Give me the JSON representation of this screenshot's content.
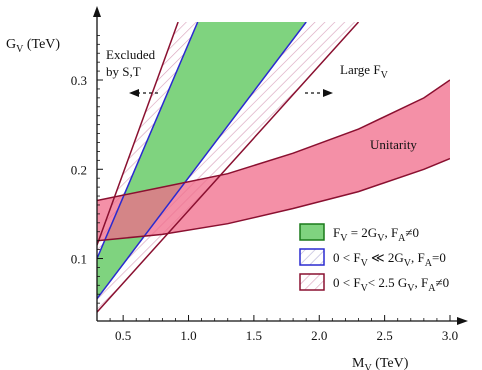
{
  "chart_data": {
    "type": "area",
    "ylabel_main": "G",
    "ylabel_sub": "V",
    "ylabel_unit": " (TeV)",
    "xlabel_main": "M",
    "xlabel_sub": "V",
    "xlabel_unit": " (TeV)",
    "xlim": [
      0.3,
      3.0
    ],
    "ylim": [
      0.03,
      0.365
    ],
    "x_ticks": [
      0.5,
      1.0,
      1.5,
      2.0,
      2.5,
      3.0
    ],
    "x_tick_labels": [
      "0.5",
      "1.0",
      "1.5",
      "2.0",
      "2.5",
      "3.0"
    ],
    "y_ticks": [
      0.1,
      0.2,
      0.3
    ],
    "y_tick_labels": [
      "0.1",
      "0.2",
      "0.3"
    ],
    "grid": false,
    "series": [
      {
        "name": "F_V = 2G_V, F_A≠0",
        "kind": "band",
        "color": "#7fd37f",
        "edge_color": "#2a2ad0",
        "lower": [
          [
            0.3,
            0.055
          ],
          [
            1.9,
            0.365
          ]
        ],
        "upper": [
          [
            0.3,
            0.1
          ],
          [
            1.07,
            0.365
          ]
        ]
      },
      {
        "name": "0 < F_V ≪ 2G_V, F_A=0",
        "kind": "hatched-band",
        "color": "#b9b4d8",
        "edge_color": "#2a2ad0",
        "lower": [
          [
            0.3,
            0.055
          ],
          [
            1.9,
            0.365
          ]
        ],
        "upper": [
          [
            0.3,
            0.1
          ],
          [
            1.07,
            0.365
          ]
        ]
      },
      {
        "name": "0 < F_V < 2.5 G_V, F_A≠0",
        "kind": "hatched-band",
        "color": "#d9a3bd",
        "edge_color": "#8a1030",
        "lower": [
          [
            0.3,
            0.04
          ],
          [
            2.3,
            0.365
          ]
        ],
        "upper": [
          [
            0.3,
            0.115
          ],
          [
            0.92,
            0.365
          ]
        ]
      },
      {
        "name": "Unitarity",
        "kind": "band",
        "color": "#f06b8a",
        "edge_color": "#8a1030",
        "lower": [
          [
            0.3,
            0.12
          ],
          [
            0.8,
            0.127
          ],
          [
            1.3,
            0.139
          ],
          [
            1.8,
            0.156
          ],
          [
            2.3,
            0.175
          ],
          [
            2.8,
            0.2
          ],
          [
            3.0,
            0.212
          ]
        ],
        "upper": [
          [
            0.3,
            0.165
          ],
          [
            0.8,
            0.18
          ],
          [
            1.3,
            0.195
          ],
          [
            1.8,
            0.218
          ],
          [
            2.3,
            0.245
          ],
          [
            2.8,
            0.28
          ],
          [
            3.0,
            0.3
          ]
        ]
      }
    ],
    "annotations": {
      "excluded_line1": "Excluded",
      "excluded_line2": "by S,T",
      "large_main": "Large F",
      "large_sub": "V",
      "unitarity": "Unitarity"
    },
    "legend": {
      "placement": "bottom-right",
      "items": [
        {
          "swatch": "#7fd37f",
          "border": "#1a7a1a",
          "hatched": false,
          "parts": [
            [
              "F",
              ""
            ],
            [
              "V",
              "sub"
            ],
            [
              " = 2G",
              ""
            ],
            [
              "V",
              "sub"
            ],
            [
              ",  F",
              ""
            ],
            [
              "A",
              "sub"
            ],
            [
              "≠0",
              ""
            ]
          ]
        },
        {
          "swatch": "#ffffff",
          "border": "#2a2ad0",
          "hatched": true,
          "hatch_color": "#b9b4d8",
          "parts": [
            [
              "0 < F",
              ""
            ],
            [
              "V",
              "sub"
            ],
            [
              " ≪ 2G",
              ""
            ],
            [
              "V",
              "sub"
            ],
            [
              ",  F",
              ""
            ],
            [
              "A",
              "sub"
            ],
            [
              "=0",
              ""
            ]
          ]
        },
        {
          "swatch": "#ffffff",
          "border": "#8a1030",
          "hatched": true,
          "hatch_color": "#d9a3bd",
          "parts": [
            [
              "0 < F",
              ""
            ],
            [
              "V",
              "sub"
            ],
            [
              "< 2.5 G",
              ""
            ],
            [
              "V",
              "sub"
            ],
            [
              ",  F",
              ""
            ],
            [
              "A",
              "sub"
            ],
            [
              "≠0",
              ""
            ]
          ]
        }
      ]
    }
  }
}
